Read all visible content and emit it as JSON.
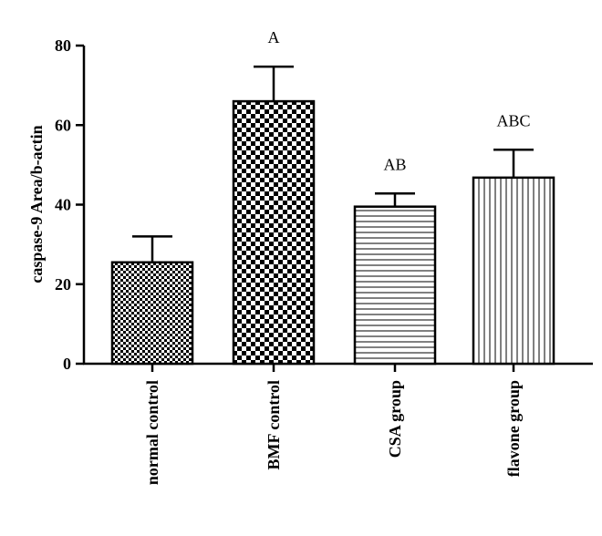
{
  "chart_data": {
    "type": "bar",
    "title": "",
    "xlabel": "",
    "ylabel": "caspase-9 Area/b-actin",
    "ylim": [
      0,
      80
    ],
    "yticks": [
      0,
      20,
      40,
      60,
      80
    ],
    "grid": false,
    "legend": "none",
    "categories": [
      "normal control",
      "BMF control",
      "CSA group",
      "flavone group"
    ],
    "values": [
      25.5,
      66,
      39.5,
      46.8
    ],
    "errors": [
      6.5,
      8.7,
      3.3,
      7.0
    ],
    "annotations": [
      "",
      "A",
      "AB",
      "ABC"
    ],
    "fill_patterns": [
      "fine-checker",
      "coarse-checker",
      "horizontal-lines",
      "vertical-lines"
    ]
  }
}
